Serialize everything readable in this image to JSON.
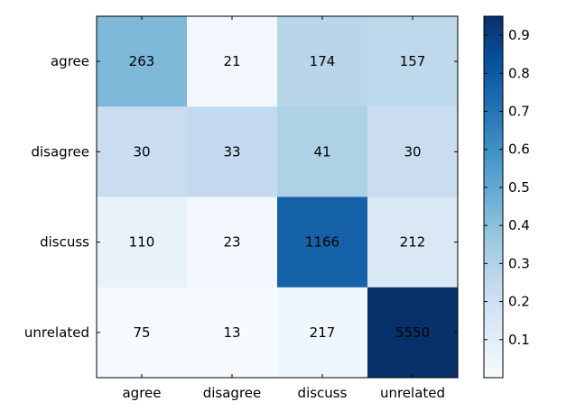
{
  "chart_data": {
    "type": "heatmap",
    "title": "",
    "xlabel": "",
    "ylabel": "",
    "x_categories": [
      "agree",
      "disagree",
      "discuss",
      "unrelated"
    ],
    "y_categories": [
      "agree",
      "disagree",
      "discuss",
      "unrelated"
    ],
    "values": [
      [
        263,
        21,
        174,
        157
      ],
      [
        30,
        33,
        41,
        30
      ],
      [
        110,
        23,
        1166,
        212
      ],
      [
        75,
        13,
        217,
        5550
      ]
    ],
    "color_values": [
      [
        0.43,
        0.03,
        0.28,
        0.26
      ],
      [
        0.22,
        0.25,
        0.31,
        0.22
      ],
      [
        0.07,
        0.02,
        0.77,
        0.14
      ],
      [
        0.01,
        0.0,
        0.04,
        0.95
      ]
    ],
    "colormap": "Blues",
    "colorbar": {
      "min": 0,
      "max": 0.95,
      "ticks": [
        0.1,
        0.2,
        0.3,
        0.4,
        0.5,
        0.6,
        0.7,
        0.8,
        0.9
      ],
      "tick_labels": [
        "0.1",
        "0.2",
        "0.3",
        "0.4",
        "0.5",
        "0.6",
        "0.7",
        "0.8",
        "0.9"
      ]
    },
    "colors": {
      "blues": [
        "#f7fbff",
        "#deebf7",
        "#c6dbef",
        "#9ecae1",
        "#6baed6",
        "#4292c6",
        "#2171b5",
        "#08519c",
        "#08306b"
      ]
    }
  }
}
